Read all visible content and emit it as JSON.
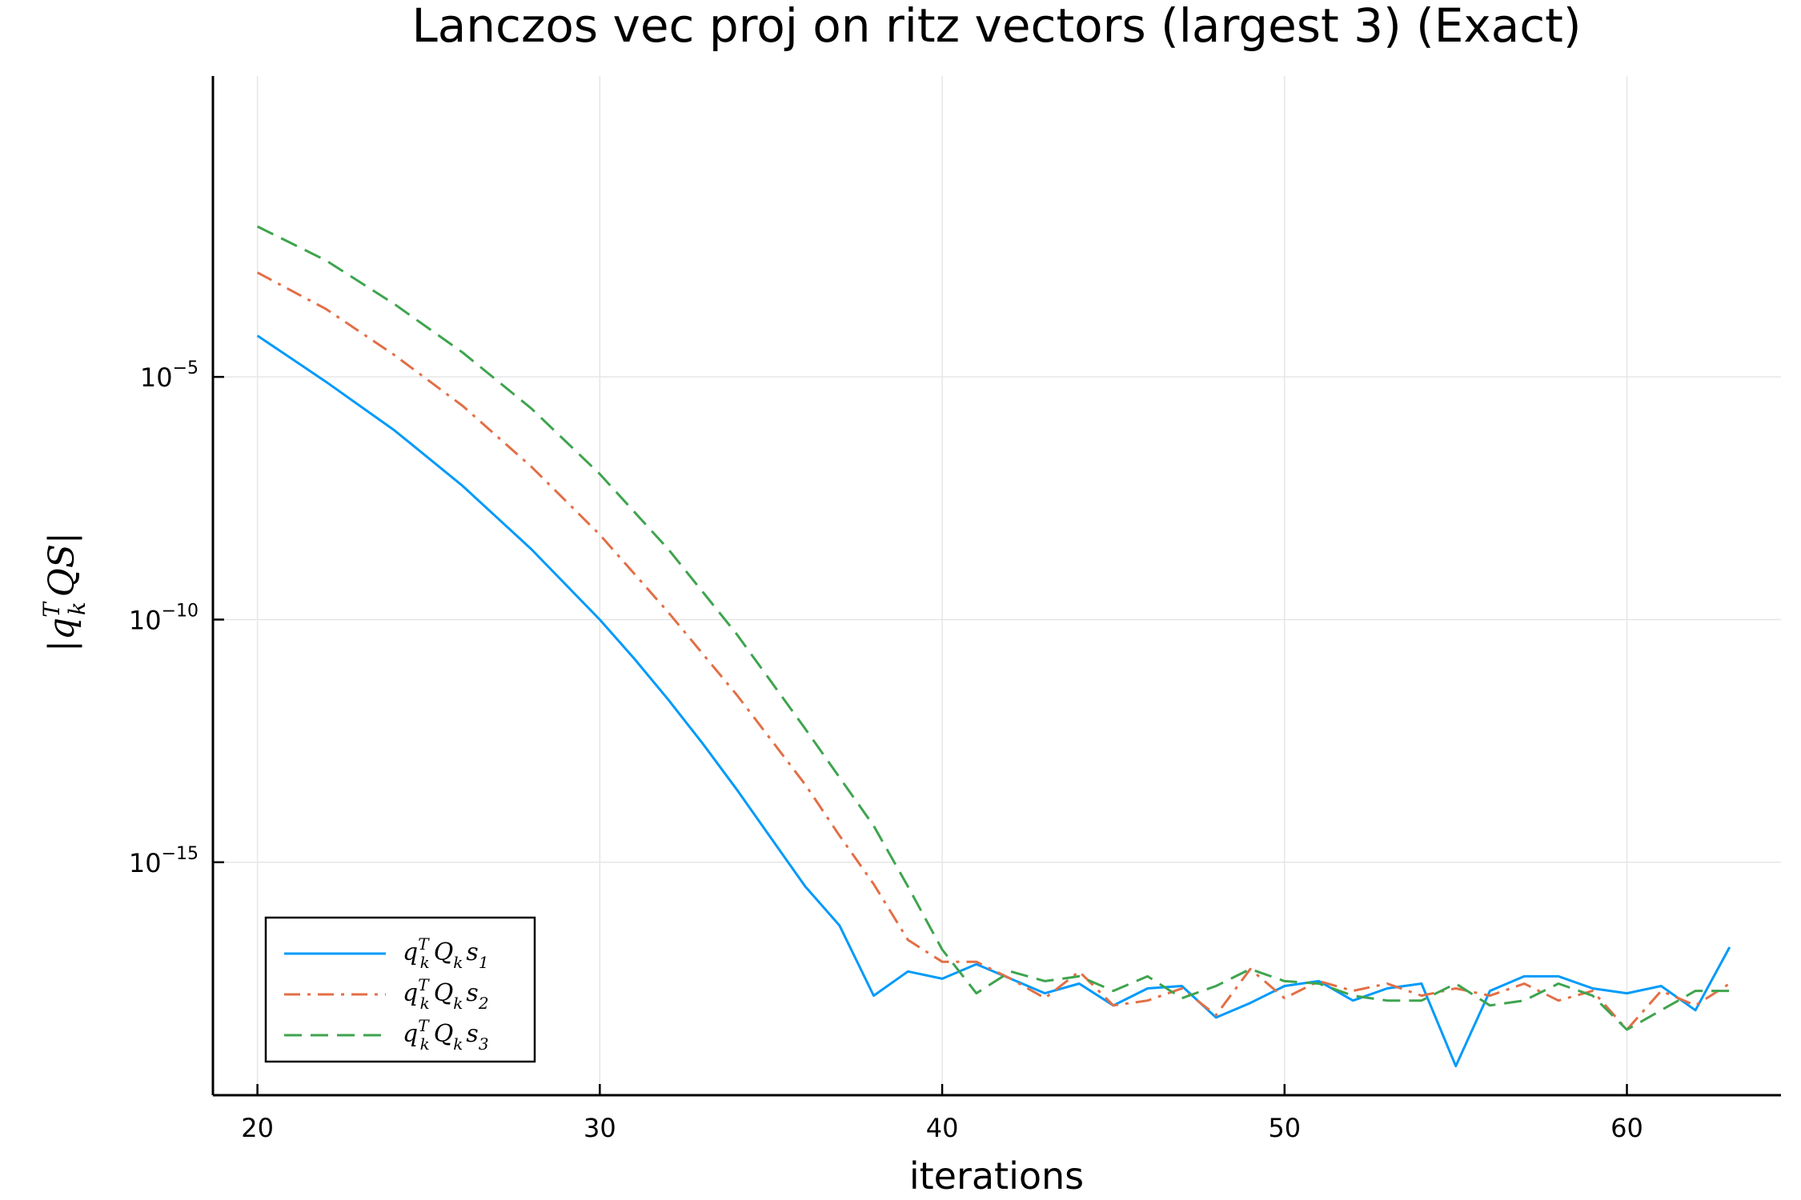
{
  "chart_data": {
    "type": "line",
    "title": "Lanczos vec proj on ritz vectors (largest 3) (Exact)",
    "xlabel": "iterations",
    "ylabel": "|q_k^T Q S|",
    "ylabel_parts": {
      "bar1": "|",
      "q": "q",
      "sup": "T",
      "sub": "k",
      "rest": "QS",
      "bar2": "|"
    },
    "x_ticks": [
      20,
      30,
      40,
      50,
      60
    ],
    "y_ticks": [
      {
        "base": "10",
        "exp": "−5",
        "value": -5
      },
      {
        "base": "10",
        "exp": "−10",
        "value": -10
      },
      {
        "base": "10",
        "exp": "−15",
        "value": -15
      }
    ],
    "xlim": [
      18.7,
      64.5
    ],
    "ylim_log10": [
      -19.8,
      1.2
    ],
    "yscale": "log10",
    "grid": true,
    "legend_position": "bottom-left",
    "series": [
      {
        "name": "q_k^T Q_k s_1",
        "label": {
          "q": "q",
          "sup": "T",
          "sub": "k",
          "Q": "Q",
          "Qsub": "k",
          "s": "s",
          "ssub": "1"
        },
        "color": "#009AFA",
        "dash": "solid",
        "x": [
          20,
          22,
          24,
          26,
          28,
          30,
          31,
          32,
          33,
          34,
          35,
          36,
          37,
          38,
          39,
          40,
          41,
          42,
          43,
          44,
          45,
          46,
          47,
          48,
          49,
          50,
          51,
          52,
          53,
          54,
          55,
          56,
          57,
          58,
          59,
          60,
          61,
          62,
          63
        ],
        "log10_y": [
          -4.15,
          -5.1,
          -6.1,
          -7.25,
          -8.55,
          -10.0,
          -10.8,
          -11.65,
          -12.55,
          -13.5,
          -14.5,
          -15.5,
          -16.3,
          -17.75,
          -17.25,
          -17.4,
          -17.1,
          -17.4,
          -17.7,
          -17.5,
          -17.95,
          -17.6,
          -17.55,
          -18.2,
          -17.9,
          -17.55,
          -17.45,
          -17.85,
          -17.6,
          -17.5,
          -19.2,
          -17.65,
          -17.35,
          -17.35,
          -17.6,
          -17.7,
          -17.55,
          -18.05,
          -16.75
        ]
      },
      {
        "name": "q_k^T Q_k s_2",
        "label": {
          "q": "q",
          "sup": "T",
          "sub": "k",
          "Q": "Q",
          "Qsub": "k",
          "s": "s",
          "ssub": "2"
        },
        "color": "#E26F46",
        "dash": "dashdot",
        "x": [
          20,
          22,
          24,
          26,
          28,
          30,
          32,
          34,
          36,
          37,
          38,
          39,
          40,
          41,
          42,
          43,
          44,
          45,
          46,
          47,
          48,
          49,
          50,
          51,
          52,
          53,
          54,
          55,
          56,
          57,
          58,
          59,
          60,
          61,
          62,
          63
        ],
        "log10_y": [
          -2.85,
          -3.6,
          -4.55,
          -5.6,
          -6.85,
          -8.25,
          -9.85,
          -11.55,
          -13.4,
          -14.45,
          -15.45,
          -16.6,
          -17.05,
          -17.05,
          -17.4,
          -17.8,
          -17.25,
          -17.95,
          -17.85,
          -17.6,
          -18.15,
          -17.2,
          -17.8,
          -17.45,
          -17.65,
          -17.5,
          -17.75,
          -17.6,
          -17.75,
          -17.5,
          -17.85,
          -17.65,
          -18.45,
          -17.65,
          -17.95,
          -17.5
        ]
      },
      {
        "name": "q_k^T Q_k s_3",
        "label": {
          "q": "q",
          "sup": "T",
          "sub": "k",
          "Q": "Q",
          "Qsub": "k",
          "s": "s",
          "ssub": "3"
        },
        "color": "#3EA44E",
        "dash": "dashed",
        "x": [
          20,
          22,
          24,
          26,
          28,
          30,
          32,
          34,
          36,
          38,
          39,
          40,
          41,
          42,
          43,
          44,
          45,
          46,
          47,
          48,
          49,
          50,
          51,
          52,
          53,
          54,
          55,
          56,
          57,
          58,
          59,
          60,
          61,
          62,
          63
        ],
        "log10_y": [
          -1.9,
          -2.6,
          -3.5,
          -4.5,
          -5.65,
          -7.0,
          -8.55,
          -10.3,
          -12.25,
          -14.25,
          -15.5,
          -16.8,
          -17.7,
          -17.25,
          -17.45,
          -17.35,
          -17.65,
          -17.35,
          -17.8,
          -17.55,
          -17.2,
          -17.45,
          -17.5,
          -17.75,
          -17.85,
          -17.85,
          -17.5,
          -17.95,
          -17.85,
          -17.5,
          -17.75,
          -18.45,
          -18.05,
          -17.65,
          -17.65
        ]
      }
    ]
  }
}
